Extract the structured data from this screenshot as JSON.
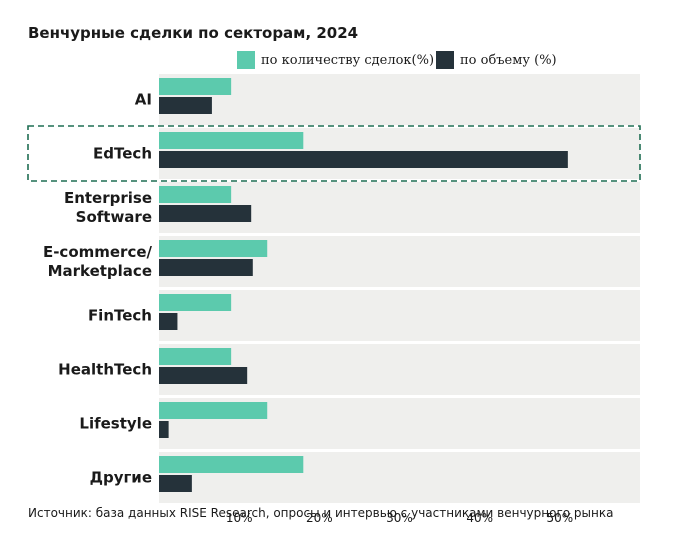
{
  "chart_data": {
    "type": "bar",
    "orientation": "horizontal",
    "title": "Венчурные сделки по секторам, 2024",
    "categories": [
      [
        "AI"
      ],
      [
        "EdTech"
      ],
      [
        "Enterprise",
        "Software"
      ],
      [
        "E-commerce/",
        "Marketplace"
      ],
      [
        "FinTech"
      ],
      [
        "HealthTech"
      ],
      [
        "Lifestyle"
      ],
      [
        "Другие"
      ]
    ],
    "series": [
      {
        "name": "по количеству сделок(%)",
        "color": "#5ccaad",
        "values": [
          9,
          18,
          9,
          13.5,
          9,
          9,
          13.5,
          18
        ]
      },
      {
        "name": "по объему (%)",
        "color": "#25323a",
        "values": [
          6.6,
          51,
          11.5,
          11.7,
          2.3,
          11,
          1.2,
          4.1
        ]
      }
    ],
    "xlim": [
      0,
      60
    ],
    "xticks": [
      10,
      20,
      30,
      40,
      50
    ],
    "xtick_labels": [
      "10%",
      "20%",
      "30%",
      "40%",
      "50%"
    ],
    "highlight_category_index": 1,
    "highlight_style": "dashed-outline",
    "grid": false,
    "legend_position": "top-right",
    "background_color": "#efefed",
    "highlight_color": "#1f6e53",
    "source": "Источник: база данных RISE Research, опросы и интервью с участниками венчурного рынка"
  }
}
